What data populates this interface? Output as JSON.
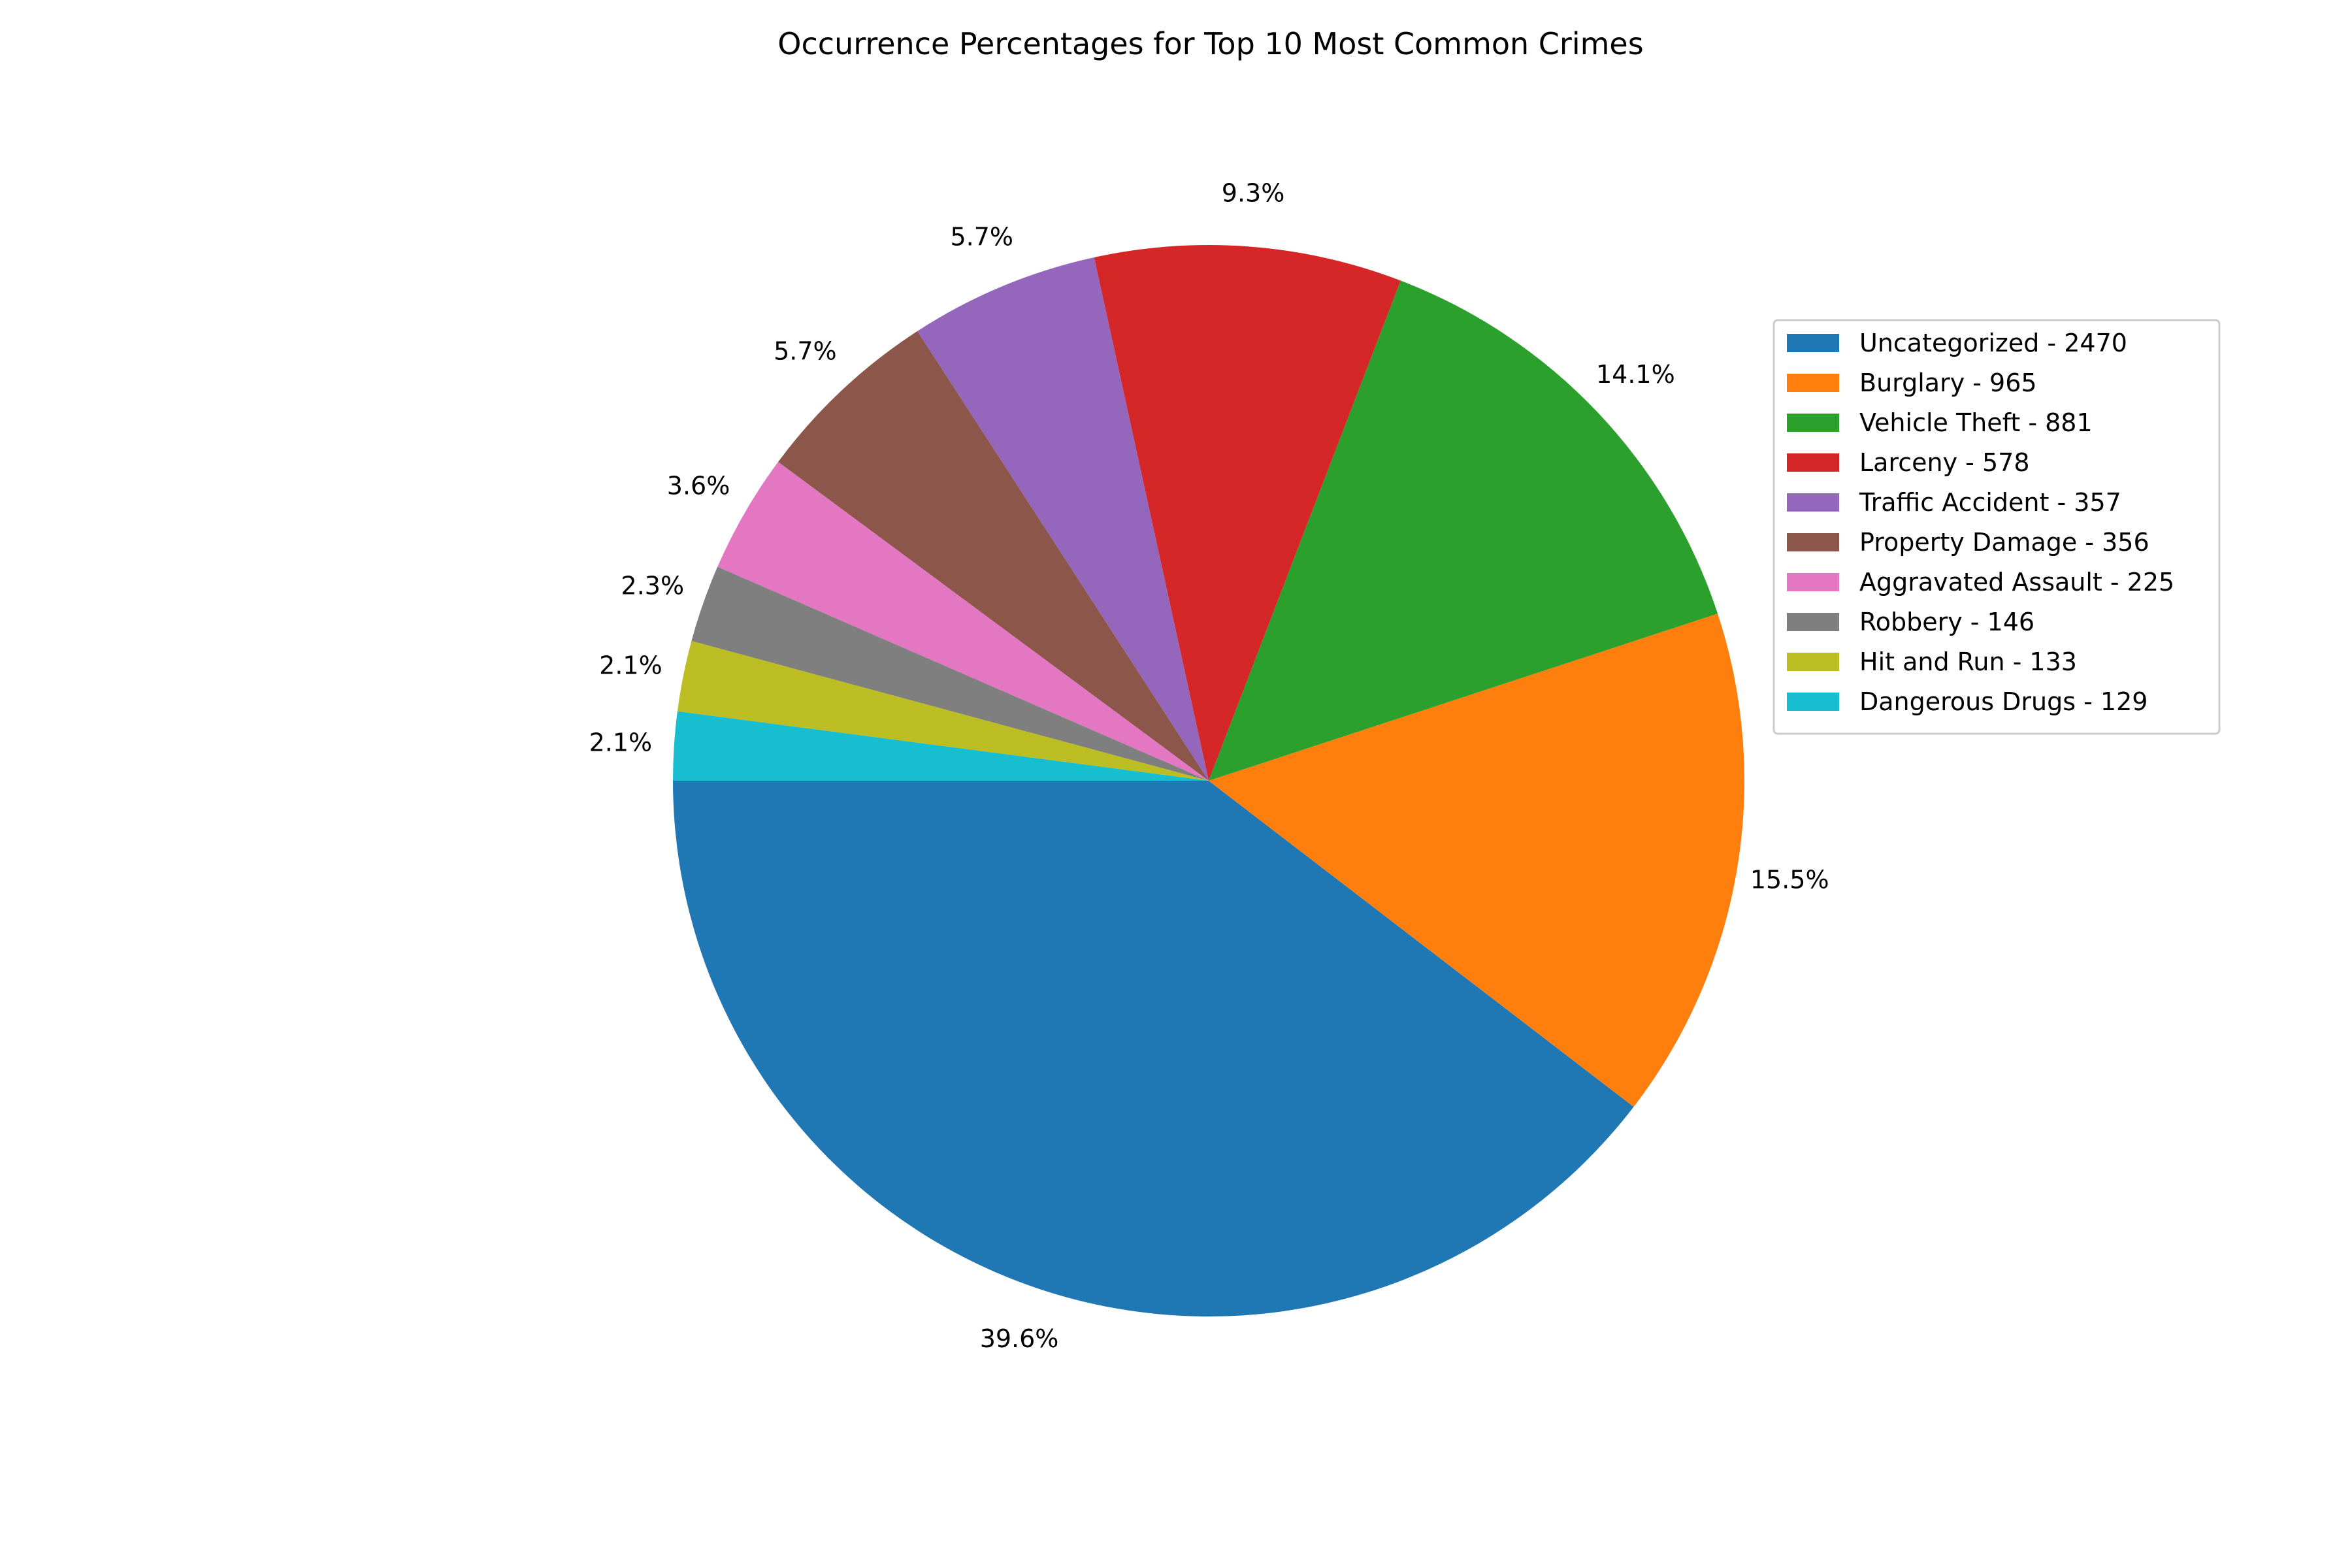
{
  "chart_data": {
    "type": "pie",
    "title": "Occurrence Percentages for Top 10 Most Common Crimes",
    "start_angle_deg": 180,
    "direction": "counterclockwise",
    "legend_position": "right",
    "slices": [
      {
        "category": "Uncategorized",
        "count": 2470,
        "legend_label": "Uncategorized - 2470",
        "percent_label": "39.6%",
        "color": "#1f77b4"
      },
      {
        "category": "Burglary",
        "count": 965,
        "legend_label": "Burglary - 965",
        "percent_label": "15.5%",
        "color": "#ff7f0e"
      },
      {
        "category": "Vehicle Theft",
        "count": 881,
        "legend_label": "Vehicle Theft - 881",
        "percent_label": "14.1%",
        "color": "#2ca02c"
      },
      {
        "category": "Larceny",
        "count": 578,
        "legend_label": "Larceny - 578",
        "percent_label": "9.3%",
        "color": "#d62728"
      },
      {
        "category": "Traffic Accident",
        "count": 357,
        "legend_label": "Traffic Accident - 357",
        "percent_label": "5.7%",
        "color": "#9467bd"
      },
      {
        "category": "Property Damage",
        "count": 356,
        "legend_label": "Property Damage - 356",
        "percent_label": "5.7%",
        "color": "#8c564b"
      },
      {
        "category": "Aggravated Assault",
        "count": 225,
        "legend_label": "Aggravated Assault - 225",
        "percent_label": "3.6%",
        "color": "#e377c2"
      },
      {
        "category": "Robbery",
        "count": 146,
        "legend_label": "Robbery - 146",
        "percent_label": "2.3%",
        "color": "#7f7f7f"
      },
      {
        "category": "Hit and Run",
        "count": 133,
        "legend_label": "Hit and Run - 133",
        "percent_label": "2.1%",
        "color": "#bcbd22"
      },
      {
        "category": "Dangerous Drugs",
        "count": 129,
        "legend_label": "Dangerous Drugs - 129",
        "percent_label": "2.1%",
        "color": "#17becf"
      }
    ]
  }
}
